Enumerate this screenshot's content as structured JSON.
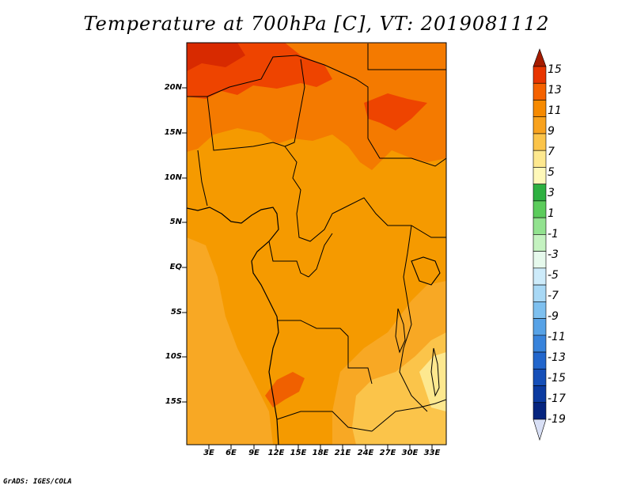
{
  "title": "Temperature at 700hPa [C], VT: 2019081112",
  "credit": "GrADS: IGES/COLA",
  "map": {
    "variable": "Temperature at 700hPa",
    "units": "C",
    "valid_time": "2019081112",
    "lat_labels": [
      "20N",
      "15N",
      "10N",
      "5N",
      "EQ",
      "5S",
      "10S",
      "15S"
    ],
    "lon_labels": [
      "3E",
      "6E",
      "9E",
      "12E",
      "15E",
      "18E",
      "21E",
      "24E",
      "27E",
      "30E",
      "33E"
    ]
  },
  "colorbar": {
    "labels": [
      "15",
      "13",
      "11",
      "9",
      "7",
      "5",
      "3",
      "1",
      "-1",
      "-3",
      "-5",
      "-7",
      "-9",
      "-11",
      "-13",
      "-15",
      "-17",
      "-19"
    ],
    "colors": [
      "#a51c00",
      "#e83500",
      "#f56200",
      "#f68a00",
      "#f8a21e",
      "#fbc44a",
      "#fde88f",
      "#fef8b9",
      "#2eb041",
      "#5ccc5c",
      "#92e28f",
      "#c4f2c0",
      "#e6f9ec",
      "#cdebfa",
      "#a8d8f5",
      "#7ec0ef",
      "#57a2e6",
      "#3883db",
      "#2266cc",
      "#154fb8",
      "#0b3aa0",
      "#05247f",
      "#d8dff5"
    ]
  }
}
